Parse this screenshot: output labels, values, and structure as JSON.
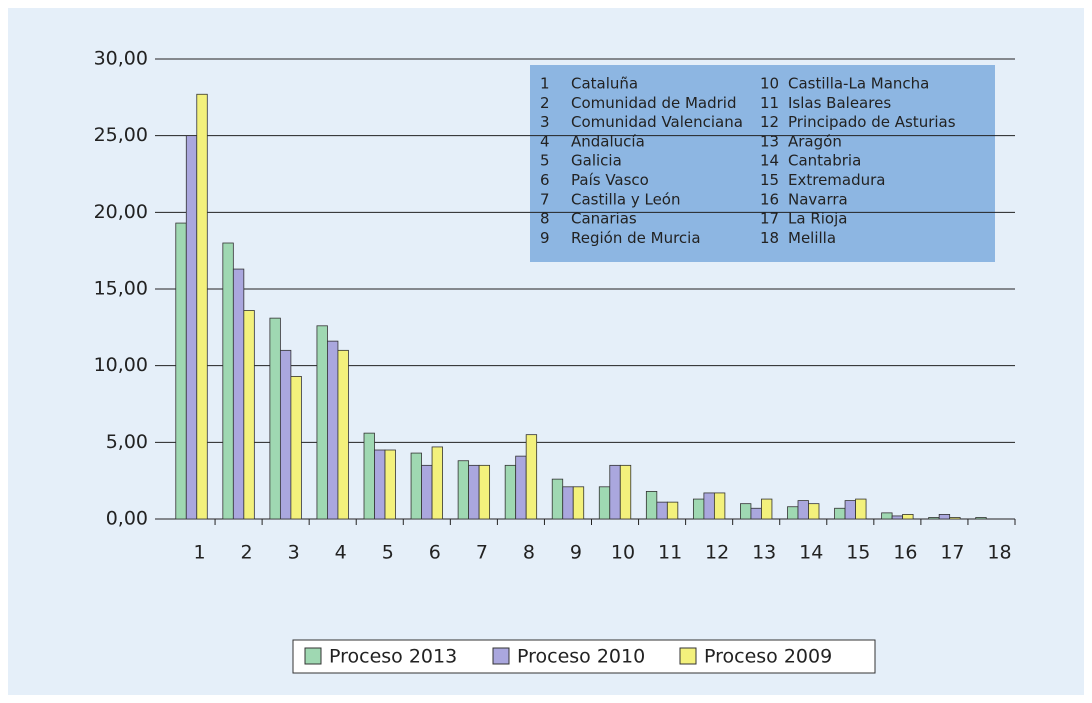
{
  "chart_data": {
    "type": "bar",
    "categories": [
      "1",
      "2",
      "3",
      "4",
      "5",
      "6",
      "7",
      "8",
      "9",
      "10",
      "11",
      "12",
      "13",
      "14",
      "15",
      "16",
      "17",
      "18"
    ],
    "series": [
      {
        "name": "Proceso 2013",
        "color": "#9fd8b2",
        "values": [
          19.3,
          18.0,
          13.1,
          12.6,
          5.6,
          4.3,
          3.8,
          3.5,
          2.6,
          2.1,
          1.8,
          1.3,
          1.0,
          0.8,
          0.7,
          0.4,
          0.1,
          0.1
        ]
      },
      {
        "name": "Proceso 2010",
        "color": "#aaa7de",
        "values": [
          25.0,
          16.3,
          11.0,
          11.6,
          4.5,
          3.5,
          3.5,
          4.1,
          2.1,
          3.5,
          1.1,
          1.7,
          0.7,
          1.2,
          1.2,
          0.2,
          0.3,
          null
        ]
      },
      {
        "name": "Proceso 2009",
        "color": "#f3f17c",
        "values": [
          27.7,
          13.6,
          9.3,
          11.0,
          4.5,
          4.7,
          3.5,
          5.5,
          2.1,
          3.5,
          1.1,
          1.7,
          1.3,
          1.0,
          1.3,
          0.3,
          0.1,
          null
        ]
      }
    ],
    "ylim": [
      0,
      30
    ],
    "yticks": [
      {
        "value": 0,
        "label": "0,00"
      },
      {
        "value": 5,
        "label": "5,00"
      },
      {
        "value": 10,
        "label": "10,00"
      },
      {
        "value": 15,
        "label": "15,00"
      },
      {
        "value": 20,
        "label": "20,00"
      },
      {
        "value": 25,
        "label": "25,00"
      },
      {
        "value": 30,
        "label": "30,00"
      }
    ],
    "grid": true,
    "key": [
      [
        "1",
        "Cataluña"
      ],
      [
        "2",
        "Comunidad de Madrid"
      ],
      [
        "3",
        "Comunidad Valenciana"
      ],
      [
        "4",
        "Andalucía"
      ],
      [
        "5",
        "Galicia"
      ],
      [
        "6",
        "País Vasco"
      ],
      [
        "7",
        "Castilla y León"
      ],
      [
        "8",
        "Canarias"
      ],
      [
        "9",
        "Región de Murcia"
      ],
      [
        "10",
        "Castilla-La Mancha"
      ],
      [
        "11",
        "Islas Baleares"
      ],
      [
        "12",
        "Principado de Asturias"
      ],
      [
        "13",
        "Aragón"
      ],
      [
        "14",
        "Cantabria"
      ],
      [
        "15",
        "Extremadura"
      ],
      [
        "16",
        "Navarra"
      ],
      [
        "17",
        "La Rioja"
      ],
      [
        "18",
        "Melilla"
      ]
    ]
  }
}
